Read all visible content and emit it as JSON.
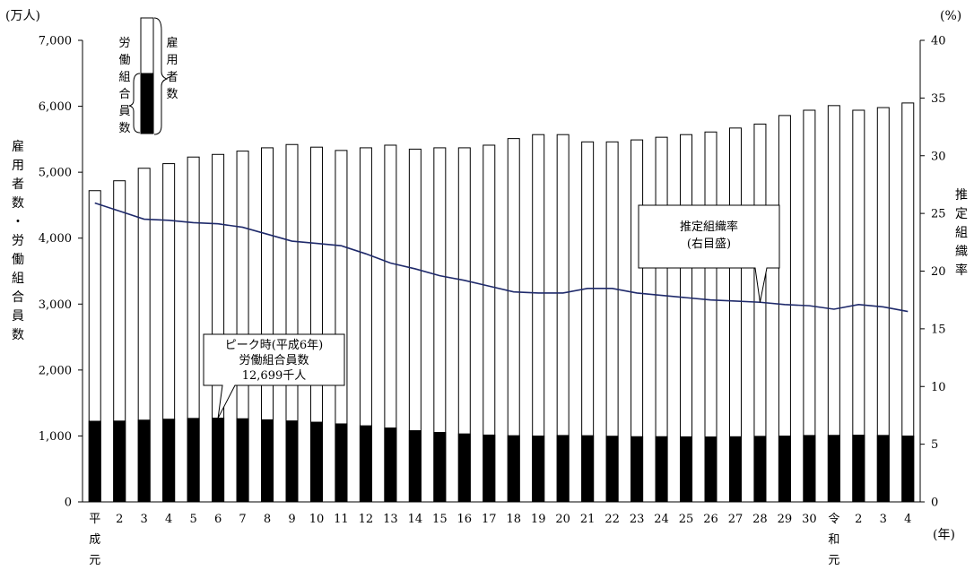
{
  "chart_data": {
    "type": "bar",
    "left_unit": "(万人)",
    "right_unit": "(%)",
    "x_unit": "(年)",
    "left_axis_label": "雇用者数・労働組合員数",
    "right_axis_label": "推定組織率",
    "left_ylim": [
      0,
      7000
    ],
    "left_ticks": [
      "0",
      "1,000",
      "2,000",
      "3,000",
      "4,000",
      "5,000",
      "6,000",
      "7,000"
    ],
    "right_ylim": [
      0,
      40
    ],
    "right_ticks": [
      "0",
      "5",
      "10",
      "15",
      "20",
      "25",
      "30",
      "35",
      "40"
    ],
    "categories": [
      "平成元",
      "2",
      "3",
      "4",
      "5",
      "6",
      "7",
      "8",
      "9",
      "10",
      "11",
      "12",
      "13",
      "14",
      "15",
      "16",
      "17",
      "18",
      "19",
      "20",
      "21",
      "22",
      "23",
      "24",
      "25",
      "26",
      "27",
      "28",
      "29",
      "30",
      "令和元",
      "2",
      "3",
      "4"
    ],
    "category_labels": [
      "平\n成\n元",
      "2",
      "3",
      "4",
      "5",
      "6",
      "7",
      "8",
      "9",
      "10",
      "11",
      "12",
      "13",
      "14",
      "15",
      "16",
      "17",
      "18",
      "19",
      "20",
      "21",
      "22",
      "23",
      "24",
      "25",
      "26",
      "27",
      "28",
      "29",
      "30",
      "令\n和\n元",
      "2",
      "3",
      "4"
    ],
    "series": [
      {
        "name": "雇用者数",
        "axis": "left",
        "style": "white-bar",
        "values": [
          4720,
          4870,
          5060,
          5130,
          5230,
          5270,
          5320,
          5370,
          5420,
          5380,
          5330,
          5370,
          5410,
          5350,
          5370,
          5370,
          5410,
          5510,
          5570,
          5570,
          5460,
          5460,
          5490,
          5530,
          5570,
          5610,
          5670,
          5730,
          5860,
          5940,
          6010,
          5940,
          5980,
          6050
        ]
      },
      {
        "name": "労働組合員数",
        "axis": "left",
        "style": "black-bar",
        "values": [
          1223,
          1226,
          1240,
          1254,
          1266,
          1270,
          1261,
          1245,
          1228,
          1209,
          1183,
          1154,
          1121,
          1080,
          1053,
          1031,
          1014,
          1004,
          999,
          1007,
          1004,
          996,
          989,
          989,
          987,
          985,
          988,
          994,
          998,
          1007,
          1009,
          1012,
          1008,
          999
        ]
      },
      {
        "name": "推定組織率",
        "axis": "right",
        "style": "navy-line",
        "values": [
          25.9,
          25.2,
          24.5,
          24.4,
          24.2,
          24.1,
          23.8,
          23.2,
          22.6,
          22.4,
          22.2,
          21.5,
          20.7,
          20.2,
          19.6,
          19.2,
          18.7,
          18.2,
          18.1,
          18.1,
          18.5,
          18.5,
          18.1,
          17.9,
          17.7,
          17.5,
          17.4,
          17.3,
          17.1,
          17.0,
          16.7,
          17.1,
          16.9,
          16.5
        ]
      }
    ],
    "legend": {
      "outer_label": "雇用者数",
      "inner_label": "労働組合員数"
    },
    "annotations": {
      "peak": {
        "lines": [
          "ピーク時(平成6年)",
          "労働組合員数",
          "12,699千人"
        ],
        "points_to": "6"
      },
      "rate": {
        "lines": [
          "推定組織率",
          "(右目盛)"
        ],
        "points_to": "28"
      }
    },
    "colors": {
      "line": "#1f2a6b",
      "bar_fill_dark": "#000000",
      "bar_fill_light": "#ffffff"
    }
  }
}
